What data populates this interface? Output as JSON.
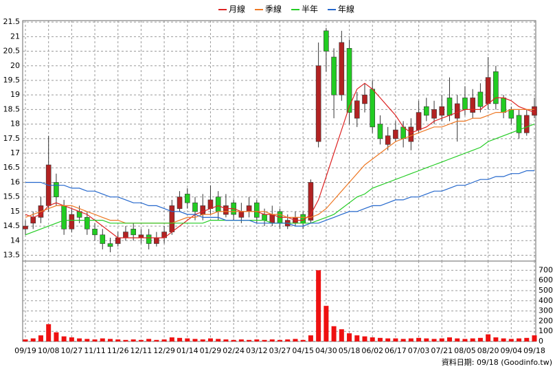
{
  "chart_data": {
    "type": "candlestick",
    "footer": "資料日期: 09/18 (Goodinfo.tw)",
    "categories": [
      "09/19",
      null,
      null,
      "10/08",
      null,
      null,
      "10/27",
      null,
      null,
      "11/11",
      null,
      null,
      "11/26",
      null,
      null,
      "12/11",
      null,
      null,
      "12/29",
      null,
      null,
      "01/14",
      null,
      null,
      "01/29",
      null,
      null,
      "02/24",
      null,
      null,
      "03/12",
      null,
      null,
      "03/27",
      null,
      null,
      "04/15",
      null,
      null,
      "04/30",
      null,
      null,
      "05/18",
      null,
      null,
      "06/02",
      null,
      null,
      "06/17",
      null,
      null,
      "07/03",
      null,
      null,
      "07/21",
      null,
      null,
      "08/05",
      null,
      null,
      "08/20",
      null,
      null,
      "09/04",
      null,
      null,
      "09/18"
    ],
    "open": [
      14.4,
      14.6,
      14.8,
      15.2,
      16.0,
      15.2,
      14.4,
      15.0,
      14.8,
      14.4,
      14.2,
      13.9,
      13.9,
      14.1,
      14.4,
      14.1,
      14.2,
      13.9,
      14.1,
      14.3,
      15.1,
      15.6,
      15.3,
      14.9,
      15.1,
      15.5,
      14.9,
      15.3,
      14.8,
      15.0,
      15.3,
      14.9,
      14.6,
      15.0,
      14.5,
      14.6,
      14.9,
      14.7,
      17.4,
      21.2,
      20.3,
      19.0,
      20.6,
      18.2,
      18.7,
      19.2,
      18.0,
      17.3,
      17.5,
      17.9,
      17.4,
      17.8,
      18.6,
      18.2,
      18.3,
      18.9,
      18.2,
      18.9,
      18.4,
      19.1,
      18.7,
      19.8,
      18.9,
      18.5,
      18.3,
      17.7,
      18.3
    ],
    "high": [
      14.7,
      15.0,
      15.5,
      17.6,
      16.3,
      15.4,
      15.1,
      15.2,
      15.0,
      14.6,
      14.4,
      14.1,
      14.3,
      14.5,
      14.6,
      14.4,
      14.4,
      14.3,
      14.5,
      15.4,
      15.7,
      15.8,
      15.5,
      15.6,
      15.9,
      15.7,
      15.6,
      15.4,
      15.3,
      15.5,
      15.4,
      15.1,
      15.2,
      15.1,
      14.9,
      15.0,
      15.0,
      16.1,
      20.8,
      21.3,
      20.6,
      21.2,
      20.9,
      19.1,
      19.4,
      19.5,
      18.3,
      17.9,
      18.1,
      18.1,
      18.2,
      18.8,
      18.9,
      18.8,
      19.0,
      19.6,
      19.0,
      19.3,
      19.2,
      19.4,
      20.3,
      20.0,
      19.0,
      18.6,
      18.5,
      18.5,
      18.9
    ],
    "low": [
      14.2,
      14.4,
      14.6,
      15.0,
      15.2,
      14.2,
      14.3,
      14.6,
      14.2,
      14.0,
      13.7,
      13.6,
      13.8,
      14.0,
      14.0,
      13.9,
      13.7,
      13.8,
      13.9,
      14.2,
      15.0,
      15.1,
      14.7,
      14.7,
      14.9,
      14.7,
      14.8,
      14.7,
      14.6,
      14.8,
      14.6,
      14.5,
      14.5,
      14.4,
      14.4,
      14.5,
      14.4,
      14.6,
      17.2,
      19.8,
      18.2,
      18.8,
      18.0,
      17.9,
      18.4,
      17.7,
      17.3,
      17.1,
      17.4,
      17.2,
      17.1,
      17.7,
      18.1,
      18.0,
      18.1,
      18.1,
      17.4,
      18.3,
      18.2,
      18.4,
      18.5,
      18.5,
      18.2,
      18.0,
      17.5,
      17.6,
      18.2
    ],
    "close": [
      14.5,
      14.8,
      15.2,
      16.6,
      15.5,
      14.4,
      14.9,
      14.8,
      14.4,
      14.2,
      13.9,
      13.8,
      14.1,
      14.3,
      14.2,
      14.2,
      13.9,
      14.1,
      14.3,
      15.2,
      15.5,
      15.3,
      15.0,
      15.2,
      15.4,
      15.0,
      15.2,
      14.9,
      15.0,
      15.2,
      14.8,
      14.7,
      14.9,
      14.6,
      14.7,
      14.8,
      14.6,
      16.0,
      20.0,
      20.5,
      19.0,
      20.8,
      18.4,
      18.8,
      19.0,
      17.9,
      17.5,
      17.6,
      17.8,
      17.5,
      17.9,
      18.4,
      18.3,
      18.5,
      18.6,
      18.3,
      18.7,
      18.5,
      18.9,
      18.6,
      19.6,
      18.7,
      18.4,
      18.2,
      17.7,
      18.3,
      18.6
    ],
    "up_color": "#b22222",
    "down_color": "#22cc22",
    "ylim": [
      13.3,
      21.55
    ],
    "yticks": [
      13.5,
      14,
      14.5,
      15,
      15.5,
      16,
      16.5,
      17,
      17.5,
      18,
      18.5,
      19,
      19.5,
      20,
      20.5,
      21,
      21.5
    ],
    "series": [
      {
        "name": "月線",
        "color": "#dd2222",
        "values": [
          14.9,
          14.8,
          14.9,
          15.2,
          15.3,
          15.2,
          15.1,
          15.0,
          14.9,
          14.7,
          14.5,
          14.3,
          14.1,
          14.1,
          14.1,
          14.1,
          14.1,
          14.1,
          14.1,
          14.3,
          14.5,
          14.7,
          14.9,
          15.0,
          15.1,
          15.2,
          15.1,
          15.1,
          15.0,
          15.0,
          15.0,
          14.9,
          14.9,
          14.8,
          14.8,
          14.7,
          14.7,
          14.9,
          15.4,
          16.2,
          17.0,
          17.8,
          18.6,
          19.2,
          19.4,
          19.2,
          18.9,
          18.6,
          18.3,
          17.9,
          17.7,
          17.8,
          17.9,
          18.1,
          18.2,
          18.3,
          18.4,
          18.5,
          18.5,
          18.5,
          18.7,
          18.9,
          18.9,
          18.8,
          18.6,
          18.5,
          18.4
        ]
      },
      {
        "name": "季線",
        "color": "#ee7722",
        "values": [
          14.8,
          14.9,
          15.0,
          15.1,
          15.2,
          15.2,
          15.2,
          15.1,
          15.0,
          14.9,
          14.8,
          14.7,
          14.7,
          14.6,
          14.6,
          14.6,
          14.6,
          14.6,
          14.6,
          14.6,
          14.7,
          14.8,
          14.8,
          14.9,
          14.9,
          15.0,
          15.0,
          15.0,
          15.0,
          15.0,
          15.0,
          15.0,
          14.9,
          14.9,
          14.8,
          14.8,
          14.8,
          14.8,
          14.9,
          15.1,
          15.4,
          15.7,
          16.0,
          16.3,
          16.6,
          16.8,
          17.0,
          17.2,
          17.4,
          17.5,
          17.6,
          17.7,
          17.8,
          17.9,
          17.9,
          18.0,
          18.1,
          18.1,
          18.2,
          18.2,
          18.3,
          18.4,
          18.4,
          18.5,
          18.5,
          18.5,
          18.5
        ]
      },
      {
        "name": "半年",
        "color": "#22cc22",
        "values": [
          14.2,
          14.3,
          14.4,
          14.5,
          14.6,
          14.7,
          14.7,
          14.7,
          14.7,
          14.7,
          14.7,
          14.6,
          14.6,
          14.6,
          14.6,
          14.6,
          14.6,
          14.6,
          14.6,
          14.6,
          14.6,
          14.6,
          14.6,
          14.6,
          14.7,
          14.7,
          14.7,
          14.7,
          14.7,
          14.7,
          14.7,
          14.7,
          14.6,
          14.6,
          14.6,
          14.6,
          14.6,
          14.6,
          14.7,
          14.8,
          14.9,
          15.1,
          15.3,
          15.5,
          15.6,
          15.8,
          15.9,
          16.0,
          16.1,
          16.2,
          16.3,
          16.4,
          16.5,
          16.6,
          16.7,
          16.8,
          16.9,
          17.0,
          17.1,
          17.2,
          17.4,
          17.5,
          17.6,
          17.7,
          17.8,
          17.9,
          18.0
        ]
      },
      {
        "name": "年線",
        "color": "#2266cc",
        "values": [
          16.0,
          16.0,
          16.0,
          15.9,
          15.9,
          15.9,
          15.8,
          15.8,
          15.7,
          15.7,
          15.6,
          15.5,
          15.5,
          15.4,
          15.3,
          15.3,
          15.2,
          15.2,
          15.1,
          15.0,
          15.0,
          14.9,
          14.9,
          14.8,
          14.8,
          14.8,
          14.7,
          14.7,
          14.7,
          14.7,
          14.6,
          14.6,
          14.6,
          14.6,
          14.6,
          14.5,
          14.5,
          14.6,
          14.6,
          14.7,
          14.8,
          14.9,
          15.0,
          15.0,
          15.1,
          15.2,
          15.2,
          15.3,
          15.4,
          15.4,
          15.5,
          15.5,
          15.6,
          15.7,
          15.7,
          15.8,
          15.9,
          15.9,
          16.0,
          16.1,
          16.1,
          16.2,
          16.2,
          16.3,
          16.3,
          16.4,
          16.4
        ]
      }
    ],
    "volume": {
      "color": "#ee1111",
      "values": [
        20,
        30,
        60,
        170,
        90,
        50,
        40,
        30,
        25,
        20,
        30,
        25,
        20,
        15,
        20,
        15,
        25,
        15,
        20,
        40,
        35,
        30,
        25,
        20,
        30,
        25,
        20,
        15,
        20,
        15,
        20,
        15,
        20,
        15,
        20,
        25,
        15,
        60,
        700,
        350,
        150,
        120,
        80,
        60,
        50,
        40,
        35,
        30,
        30,
        25,
        30,
        35,
        30,
        25,
        30,
        40,
        30,
        25,
        30,
        35,
        70,
        40,
        30,
        25,
        30,
        35,
        60
      ],
      "ylim": [
        0,
        790
      ],
      "yticks": [
        0,
        100,
        200,
        300,
        400,
        500,
        600,
        700
      ]
    },
    "grid": true
  }
}
